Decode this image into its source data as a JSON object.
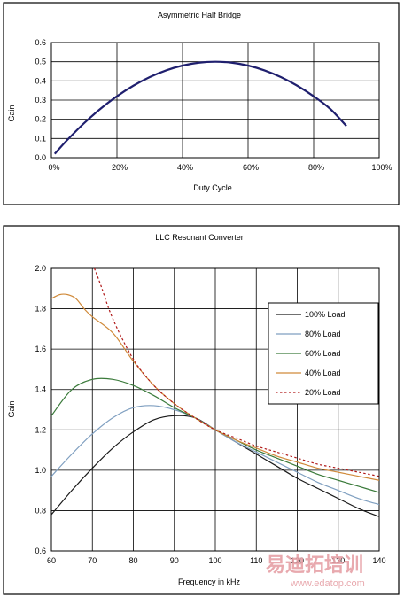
{
  "chart_data": [
    {
      "type": "line",
      "title": "Asymmetric Half Bridge",
      "xlabel": "Duty Cycle",
      "ylabel": "Gain",
      "xlim": [
        0,
        100
      ],
      "ylim": [
        0,
        0.6
      ],
      "x_ticks": [
        "0%",
        "20%",
        "40%",
        "60%",
        "80%",
        "100%"
      ],
      "y_ticks": [
        "0.0",
        "0.1",
        "0.2",
        "0.3",
        "0.4",
        "0.5",
        "0.6"
      ],
      "grid": true,
      "series": [
        {
          "color": "#1f1f6e",
          "style": "solid",
          "x": [
            1,
            5,
            10,
            15,
            20,
            25,
            30,
            35,
            40,
            45,
            50,
            55,
            60,
            65,
            70,
            75,
            80,
            85,
            90
          ],
          "y": [
            0.02,
            0.095,
            0.18,
            0.255,
            0.32,
            0.375,
            0.42,
            0.455,
            0.48,
            0.495,
            0.5,
            0.495,
            0.48,
            0.455,
            0.42,
            0.375,
            0.32,
            0.255,
            0.165
          ]
        }
      ]
    },
    {
      "type": "line",
      "title": "LLC Resonant Converter",
      "xlabel": "Frequency in kHz",
      "ylabel": "Gain",
      "xlim": [
        60,
        140
      ],
      "ylim": [
        0.6,
        2.0
      ],
      "x_ticks": [
        "60",
        "70",
        "80",
        "90",
        "100",
        "110",
        "120",
        "130",
        "140"
      ],
      "y_ticks": [
        "0.6",
        "0.8",
        "1.0",
        "1.2",
        "1.4",
        "1.6",
        "1.8",
        "2.0"
      ],
      "grid": true,
      "legend": "right",
      "series": [
        {
          "name": "100% Load",
          "color": "#1a1a1a",
          "style": "solid",
          "x": [
            60,
            65,
            70,
            75,
            80,
            85,
            90,
            95,
            100,
            105,
            110,
            115,
            120,
            125,
            130,
            135,
            140
          ],
          "y": [
            0.78,
            0.9,
            1.01,
            1.11,
            1.19,
            1.25,
            1.27,
            1.26,
            1.2,
            1.14,
            1.08,
            1.02,
            0.96,
            0.91,
            0.86,
            0.81,
            0.77
          ]
        },
        {
          "name": "80% Load",
          "color": "#7f9fc0",
          "style": "solid",
          "x": [
            60,
            65,
            70,
            75,
            80,
            85,
            90,
            95,
            100,
            105,
            110,
            115,
            120,
            125,
            130,
            135,
            140
          ],
          "y": [
            0.97,
            1.08,
            1.18,
            1.26,
            1.31,
            1.32,
            1.3,
            1.26,
            1.2,
            1.14,
            1.09,
            1.04,
            0.99,
            0.94,
            0.9,
            0.86,
            0.83
          ]
        },
        {
          "name": "60% Load",
          "color": "#3a7a3a",
          "style": "solid",
          "x": [
            60,
            65,
            70,
            75,
            80,
            85,
            90,
            95,
            100,
            105,
            110,
            115,
            120,
            125,
            130,
            135,
            140
          ],
          "y": [
            1.27,
            1.4,
            1.45,
            1.45,
            1.42,
            1.37,
            1.31,
            1.26,
            1.2,
            1.15,
            1.1,
            1.06,
            1.02,
            0.98,
            0.95,
            0.92,
            0.89
          ]
        },
        {
          "name": "40% Load",
          "color": "#d08a3a",
          "style": "solid",
          "x": [
            60,
            62,
            64,
            66,
            68,
            70,
            75,
            80,
            85,
            90,
            95,
            100,
            105,
            110,
            115,
            120,
            125,
            130,
            135,
            140
          ],
          "y": [
            1.85,
            1.87,
            1.87,
            1.85,
            1.8,
            1.76,
            1.68,
            1.54,
            1.42,
            1.33,
            1.26,
            1.2,
            1.15,
            1.11,
            1.07,
            1.04,
            1.01,
            0.99,
            0.97,
            0.95
          ]
        },
        {
          "name": "20% Load",
          "color": "#b01818",
          "style": "dashed",
          "x": [
            70.5,
            72,
            75,
            80,
            85,
            90,
            95,
            100,
            105,
            110,
            115,
            120,
            125,
            130,
            135,
            140
          ],
          "y": [
            2.0,
            1.92,
            1.75,
            1.55,
            1.42,
            1.33,
            1.26,
            1.2,
            1.16,
            1.12,
            1.09,
            1.06,
            1.03,
            1.01,
            0.99,
            0.97
          ]
        }
      ]
    }
  ],
  "watermark": {
    "cn": "易迪拓培训",
    "url": "www.edatop.com"
  }
}
